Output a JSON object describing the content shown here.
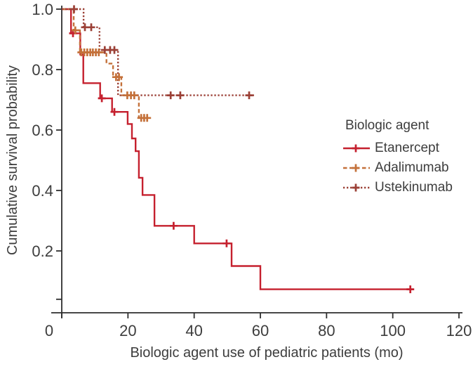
{
  "figure": {
    "background": "#ffffff",
    "text_color": "#3d3d3d",
    "axis_color": "#2e2e2e"
  },
  "chart_data": {
    "type": "line",
    "subtype": "kaplan-meier-step-curves",
    "title": "",
    "xlabel": "Biologic agent use of pediatric patients (mo)",
    "ylabel": "Cumulative survival probability",
    "xlim": [
      0,
      120
    ],
    "ylim": [
      0,
      1.0
    ],
    "grid": "off",
    "x_ticks": [
      [
        0,
        "0"
      ],
      [
        20,
        "20"
      ],
      [
        40,
        "40"
      ],
      [
        60,
        "60"
      ],
      [
        80,
        "80"
      ],
      [
        100,
        "100"
      ],
      [
        120,
        "120"
      ]
    ],
    "y_ticks": [
      [
        1.0,
        "1.0"
      ],
      [
        0.8,
        "0.8"
      ],
      [
        0.6,
        "0.6"
      ],
      [
        0.4,
        "0.4"
      ],
      [
        0.2,
        "0.2"
      ]
    ],
    "y_axis_end_tick": 0.04,
    "legend": {
      "title": "Biologic agent",
      "position": "right-middle"
    },
    "series": [
      {
        "name": "Etanercept",
        "color": "#C5202E",
        "line_style": "solid",
        "steps": [
          [
            0,
            1.0
          ],
          [
            2.8,
            0.92
          ],
          [
            5.6,
            0.85
          ],
          [
            6.5,
            0.755
          ],
          [
            11.6,
            0.705
          ],
          [
            15.2,
            0.66
          ],
          [
            19.9,
            0.62
          ],
          [
            21.2,
            0.572
          ],
          [
            22.3,
            0.53
          ],
          [
            23.3,
            0.442
          ],
          [
            24.4,
            0.385
          ],
          [
            28,
            0.283
          ],
          [
            40,
            0.225
          ],
          [
            51.3,
            0.15
          ],
          [
            60,
            0.073
          ]
        ],
        "end_month": 106,
        "censor_marks": [
          [
            3.4,
            0.92
          ],
          [
            12.1,
            0.705
          ],
          [
            15.9,
            0.66
          ],
          [
            33.8,
            0.283
          ],
          [
            49.8,
            0.225
          ],
          [
            105.3,
            0.073
          ]
        ]
      },
      {
        "name": "Adalimumab",
        "color": "#C4713A",
        "line_style": "dashed",
        "steps": [
          [
            0,
            1.0
          ],
          [
            3.6,
            0.93
          ],
          [
            5.5,
            0.857
          ],
          [
            13.5,
            0.82
          ],
          [
            15.5,
            0.775
          ],
          [
            18,
            0.715
          ],
          [
            23.3,
            0.64
          ]
        ],
        "end_month": 26.3,
        "censor_marks": [
          [
            4.1,
            0.93
          ],
          [
            5.9,
            0.857
          ],
          [
            6.8,
            0.857
          ],
          [
            7.7,
            0.857
          ],
          [
            8.6,
            0.857
          ],
          [
            9.4,
            0.857
          ],
          [
            10.3,
            0.857
          ],
          [
            11.2,
            0.857
          ],
          [
            16.4,
            0.775
          ],
          [
            17.3,
            0.775
          ],
          [
            19.8,
            0.715
          ],
          [
            20.9,
            0.715
          ],
          [
            21.9,
            0.715
          ],
          [
            24,
            0.64
          ],
          [
            24.9,
            0.64
          ],
          [
            25.8,
            0.64
          ]
        ]
      },
      {
        "name": "Ustekinumab",
        "color": "#9B4036",
        "line_style": "dotted",
        "steps": [
          [
            0,
            1.0
          ],
          [
            6.6,
            0.94
          ],
          [
            11.4,
            0.865
          ],
          [
            17,
            0.715
          ]
        ],
        "end_month": 58.1,
        "censor_marks": [
          [
            3.7,
            1.0
          ],
          [
            7.0,
            0.94
          ],
          [
            8.9,
            0.94
          ],
          [
            13,
            0.865
          ],
          [
            14.6,
            0.865
          ],
          [
            15.9,
            0.865
          ],
          [
            32.9,
            0.715
          ],
          [
            35.8,
            0.715
          ],
          [
            56.6,
            0.715
          ]
        ]
      }
    ]
  }
}
